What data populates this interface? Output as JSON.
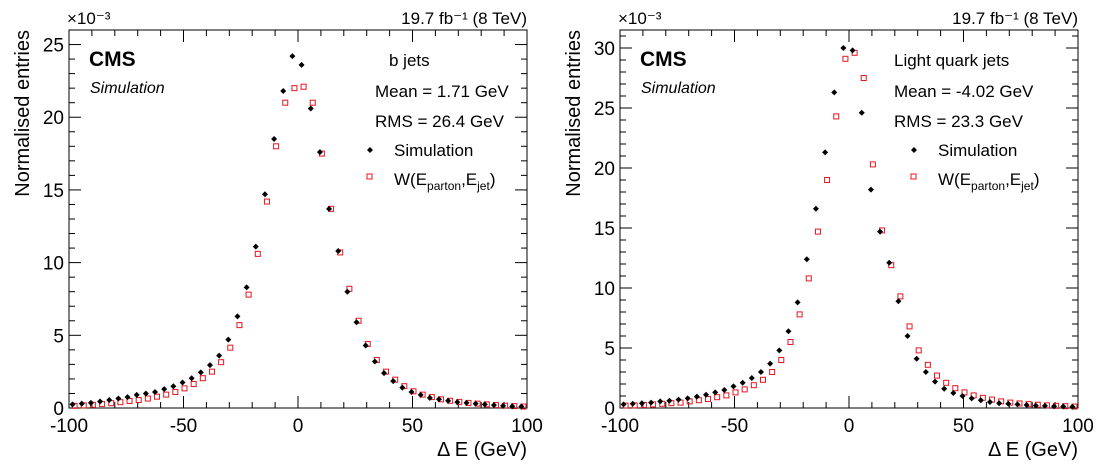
{
  "charts": [
    {
      "id": "left",
      "luminosity_label": "19.7 fb⁻¹ (8 TeV)",
      "exponent_label": "×10⁻³",
      "cms_label": "CMS",
      "simulation_label": "Simulation",
      "category_label": "b jets",
      "mean_label": "Mean = 1.71 GeV",
      "rms_label": "RMS = 26.4 GeV",
      "xlabel": "Δ E (GeV)",
      "ylabel": "Normalised entries",
      "legend": {
        "sim": "Simulation",
        "w": "W(E_parton,E_jet)"
      }
    },
    {
      "id": "right",
      "luminosity_label": "19.7 fb⁻¹ (8 TeV)",
      "exponent_label": "×10⁻³",
      "cms_label": "CMS",
      "simulation_label": "Simulation",
      "category_label": "Light quark jets",
      "mean_label": "Mean = -4.02 GeV",
      "rms_label": "RMS = 23.3 GeV",
      "xlabel": "Δ E (GeV)",
      "ylabel": "Normalised entries",
      "legend": {
        "sim": "Simulation",
        "w": "W(E_parton,E_jet)"
      }
    }
  ],
  "chart_data": [
    {
      "type": "scatter",
      "title": "",
      "xlabel": "Δ E (GeV)",
      "ylabel": "Normalised entries",
      "y_scale_note": "×10⁻³",
      "xlim": [
        -100,
        100
      ],
      "ylim": [
        0,
        26
      ],
      "xticks": [
        -100,
        -50,
        0,
        50,
        100
      ],
      "yticks": [
        0,
        5,
        10,
        15,
        20,
        25
      ],
      "grid": false,
      "legend_position": "top-right",
      "colors": {
        "sim": "#000000",
        "w": "#e8141e"
      },
      "x": [
        -98,
        -94,
        -90,
        -86,
        -82,
        -78,
        -74,
        -70,
        -66,
        -62,
        -58,
        -54,
        -50,
        -46,
        -42,
        -38,
        -34,
        -30,
        -26,
        -22,
        -18,
        -14,
        -10,
        -6,
        -2,
        2,
        6,
        10,
        14,
        18,
        22,
        26,
        30,
        34,
        38,
        42,
        46,
        50,
        54,
        58,
        62,
        66,
        70,
        74,
        78,
        82,
        86,
        90,
        94,
        98
      ],
      "series": [
        {
          "name": "Simulation",
          "marker": "filled-diamond",
          "values": [
            0.25,
            0.3,
            0.35,
            0.45,
            0.55,
            0.65,
            0.75,
            0.9,
            1.0,
            1.1,
            1.3,
            1.5,
            1.75,
            2.05,
            2.45,
            2.95,
            3.6,
            4.7,
            6.3,
            8.3,
            11.1,
            14.7,
            18.5,
            21.8,
            24.2,
            23.6,
            20.6,
            17.6,
            13.7,
            10.8,
            8.0,
            5.9,
            4.3,
            3.2,
            2.4,
            1.85,
            1.4,
            1.1,
            0.9,
            0.7,
            0.6,
            0.5,
            0.4,
            0.35,
            0.3,
            0.25,
            0.2,
            0.15,
            0.12,
            0.1
          ]
        },
        {
          "name": "W(E_parton,E_jet)",
          "marker": "open-square",
          "values": [
            0.15,
            0.18,
            0.22,
            0.28,
            0.33,
            0.4,
            0.48,
            0.55,
            0.65,
            0.78,
            0.92,
            1.1,
            1.35,
            1.65,
            2.05,
            2.5,
            3.15,
            4.15,
            5.7,
            7.8,
            10.6,
            14.2,
            18.0,
            21.0,
            22.0,
            22.1,
            21.0,
            17.5,
            13.7,
            10.7,
            8.2,
            6.0,
            4.4,
            3.3,
            2.5,
            1.95,
            1.5,
            1.15,
            0.92,
            0.75,
            0.6,
            0.5,
            0.42,
            0.35,
            0.3,
            0.25,
            0.2,
            0.16,
            0.13,
            0.1
          ]
        }
      ]
    },
    {
      "type": "scatter",
      "title": "",
      "xlabel": "Δ E (GeV)",
      "ylabel": "Normalised entries",
      "y_scale_note": "×10⁻³",
      "xlim": [
        -100,
        100
      ],
      "ylim": [
        0,
        31.5
      ],
      "xticks": [
        -100,
        -50,
        0,
        50,
        100
      ],
      "yticks": [
        0,
        5,
        10,
        15,
        20,
        25,
        30
      ],
      "grid": false,
      "legend_position": "top-right",
      "colors": {
        "sim": "#000000",
        "w": "#e8141e"
      },
      "x": [
        -98,
        -94,
        -90,
        -86,
        -82,
        -78,
        -74,
        -70,
        -66,
        -62,
        -58,
        -54,
        -50,
        -46,
        -42,
        -38,
        -34,
        -30,
        -26,
        -22,
        -18,
        -14,
        -10,
        -6,
        -2,
        2,
        6,
        10,
        14,
        18,
        22,
        26,
        30,
        34,
        38,
        42,
        46,
        50,
        54,
        58,
        62,
        66,
        70,
        74,
        78,
        82,
        86,
        90,
        94,
        98
      ],
      "series": [
        {
          "name": "Simulation",
          "marker": "filled-diamond",
          "values": [
            0.3,
            0.35,
            0.4,
            0.45,
            0.55,
            0.6,
            0.7,
            0.8,
            0.95,
            1.1,
            1.3,
            1.5,
            1.8,
            2.1,
            2.5,
            3.0,
            3.7,
            4.8,
            6.4,
            8.8,
            12.4,
            16.6,
            21.3,
            26.3,
            30.0,
            29.8,
            24.6,
            18.2,
            14.7,
            12.1,
            8.9,
            6.0,
            4.1,
            3.0,
            2.2,
            1.6,
            1.25,
            1.0,
            0.8,
            0.65,
            0.5,
            0.4,
            0.35,
            0.3,
            0.25,
            0.2,
            0.18,
            0.15,
            0.12,
            0.1
          ]
        },
        {
          "name": "W(E_parton,E_jet)",
          "marker": "open-square",
          "values": [
            0.2,
            0.22,
            0.25,
            0.3,
            0.35,
            0.4,
            0.45,
            0.55,
            0.65,
            0.75,
            0.9,
            1.05,
            1.3,
            1.55,
            1.9,
            2.35,
            3.0,
            4.0,
            5.5,
            7.8,
            10.8,
            14.7,
            19.0,
            24.3,
            29.1,
            29.6,
            27.5,
            20.3,
            14.8,
            11.9,
            9.3,
            6.8,
            4.8,
            3.6,
            2.7,
            2.1,
            1.65,
            1.3,
            1.05,
            0.85,
            0.7,
            0.55,
            0.45,
            0.38,
            0.32,
            0.27,
            0.22,
            0.18,
            0.15,
            0.12
          ]
        }
      ]
    }
  ]
}
